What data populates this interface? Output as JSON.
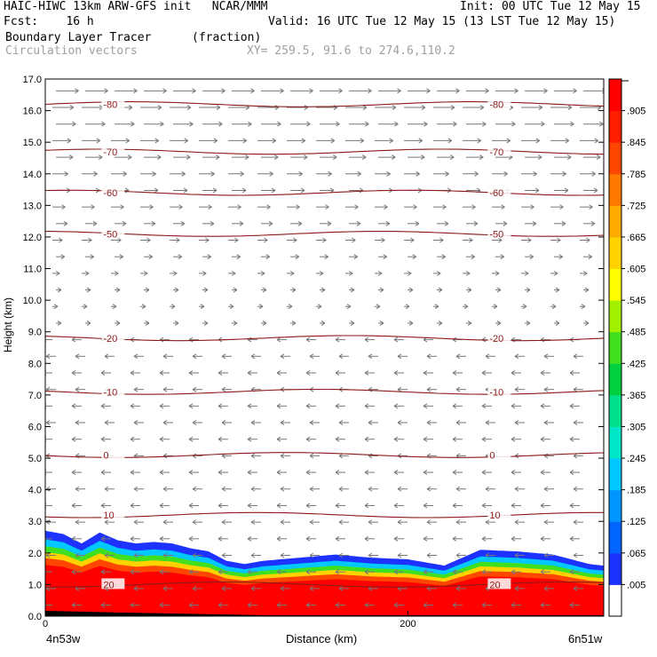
{
  "header": {
    "line1_left": "HAIC-HIWC 13km ARW-GFS init   NCAR/MMM",
    "line1_right": "Init: 00 UTC Tue 12 May 15",
    "line2_left": "Fcst:    16 h",
    "line2_right": "Valid: 16 UTC Tue 12 May 15 (13 LST Tue 12 May 15)",
    "line3_left": "Boundary Layer Tracer",
    "line3_mid": "(fraction)",
    "line4_left": "Circulation vectors",
    "line4_mid": "XY= 259.5, 91.6 to 274.6,110.2"
  },
  "chart_data": {
    "type": "heatmap",
    "xlabel": "Distance (km)",
    "ylabel": "Height (km)",
    "xlim": [
      0,
      308
    ],
    "ylim": [
      0,
      17
    ],
    "x_ticks": [
      0,
      200
    ],
    "x_end_labels": [
      "4n53w",
      "6n51w"
    ],
    "y_ticks": [
      "0.0",
      "1.0",
      "2.0",
      "3.0",
      "4.0",
      "5.0",
      "6.0",
      "7.0",
      "8.0",
      "9.0",
      "10.0",
      "11.0",
      "12.0",
      "13.0",
      "14.0",
      "15.0",
      "16.0",
      "17.0"
    ],
    "colorbar_labels": [
      ".005",
      ".065",
      ".125",
      ".185",
      ".245",
      ".305",
      ".365",
      ".425",
      ".485",
      ".545",
      ".605",
      ".665",
      ".725",
      ".785",
      ".845",
      ".905"
    ],
    "colorbar_colors": [
      "#ffffff",
      "#1e32ff",
      "#0064ff",
      "#0096ff",
      "#00c8ff",
      "#00e6c8",
      "#00e08c",
      "#00d040",
      "#40e020",
      "#a0f000",
      "#ffff00",
      "#ffd200",
      "#ffaa00",
      "#ff7800",
      "#ff4600",
      "#ff1e00",
      "#ff0000"
    ],
    "tracer_top_km": [
      [
        0,
        2.7
      ],
      [
        10,
        2.6
      ],
      [
        20,
        2.3
      ],
      [
        30,
        2.65
      ],
      [
        40,
        2.4
      ],
      [
        50,
        2.3
      ],
      [
        60,
        2.35
      ],
      [
        70,
        2.3
      ],
      [
        80,
        2.15
      ],
      [
        90,
        2.05
      ],
      [
        100,
        1.75
      ],
      [
        110,
        1.65
      ],
      [
        120,
        1.75
      ],
      [
        140,
        1.85
      ],
      [
        160,
        1.95
      ],
      [
        180,
        1.85
      ],
      [
        200,
        1.8
      ],
      [
        220,
        1.6
      ],
      [
        240,
        2.1
      ],
      [
        260,
        2.05
      ],
      [
        280,
        1.95
      ],
      [
        300,
        1.65
      ],
      [
        308,
        1.6
      ]
    ],
    "tracer_layers": [
      {
        "value": 0.065,
        "color": "#1e32ff"
      },
      {
        "value": 0.245,
        "color": "#00c8ff"
      },
      {
        "value": 0.485,
        "color": "#40e020"
      },
      {
        "value": 0.665,
        "color": "#ffd200"
      },
      {
        "value": 0.845,
        "color": "#ff4600"
      },
      {
        "value": 0.965,
        "color": "#ff0000"
      }
    ],
    "temperature_contours": [
      {
        "label": "-80",
        "km": 16.2
      },
      {
        "label": "-70",
        "km": 14.7
      },
      {
        "label": "-60",
        "km": 13.4
      },
      {
        "label": "-50",
        "km": 12.1
      },
      {
        "label": "-20",
        "km": 8.8
      },
      {
        "label": "-10",
        "km": 7.1
      },
      {
        "label": "0",
        "km": 5.1
      },
      {
        "label": "10",
        "km": 3.2
      },
      {
        "label": "20",
        "km": 1.0
      }
    ]
  }
}
